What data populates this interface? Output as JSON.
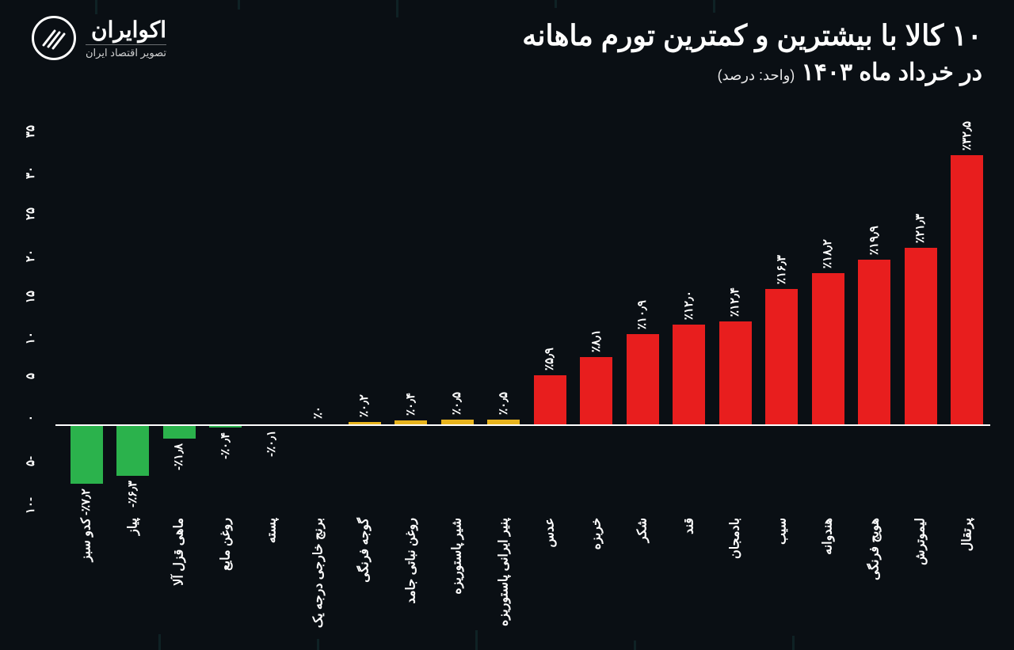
{
  "brand": {
    "name": "اکوایران",
    "tagline": "تصویر اقتصاد ایران"
  },
  "title": {
    "line1": "۱۰ کالا با بیشترین و کمترین تورم ماهانه",
    "line2": "در خرداد ماه ۱۴۰۳",
    "unit": "(واحد: درصد)"
  },
  "chart": {
    "type": "bar",
    "ymin": -10,
    "ymax": 35,
    "yticks": [
      -10,
      -5,
      0,
      5,
      10,
      15,
      20,
      25,
      30,
      35
    ],
    "ytick_labels": [
      "-۱۰",
      "-۵",
      "۰",
      "۵",
      "۱۰",
      "۱۵",
      "۲۰",
      "۲۵",
      "۳۰",
      "۳۵"
    ],
    "colors": {
      "positive_high": "#e81e1e",
      "positive_low": "#e8b41e",
      "negative": "#2bb24c",
      "axis": "#ffffff",
      "background": "#0a0f14"
    },
    "items": [
      {
        "category": "پرتقال",
        "value": 32.5,
        "label": "٪۳۲٫۵",
        "group": "high"
      },
      {
        "category": "لیموترش",
        "value": 21.3,
        "label": "٪۲۱٫۳",
        "group": "high"
      },
      {
        "category": "هویج فرنگی",
        "value": 19.9,
        "label": "٪۱۹٫۹",
        "group": "high"
      },
      {
        "category": "هندوانه",
        "value": 18.2,
        "label": "٪۱۸٫۲",
        "group": "high"
      },
      {
        "category": "سیب",
        "value": 16.3,
        "label": "٪۱۶٫۳",
        "group": "high"
      },
      {
        "category": "بادمجان",
        "value": 12.4,
        "label": "٪۱۲٫۴",
        "group": "high"
      },
      {
        "category": "قند",
        "value": 12.0,
        "label": "٪۱۲٫۰",
        "group": "high"
      },
      {
        "category": "شکر",
        "value": 10.9,
        "label": "٪۱۰٫۹",
        "group": "high"
      },
      {
        "category": "خربزه",
        "value": 8.1,
        "label": "٪۸٫۱",
        "group": "high"
      },
      {
        "category": "عدس",
        "value": 5.9,
        "label": "٪۵٫۹",
        "group": "high"
      },
      {
        "category": "پنیر ایرانی پاستوریزه",
        "value": 0.5,
        "label": "٪۰٫۵",
        "group": "low"
      },
      {
        "category": "شیر پاستوریزه",
        "value": 0.5,
        "label": "٪۰٫۵",
        "group": "low"
      },
      {
        "category": "روغن نباتی جامد",
        "value": 0.4,
        "label": "٪۰٫۴",
        "group": "low"
      },
      {
        "category": "گوجه فرنگی",
        "value": 0.2,
        "label": "٪۰٫۲",
        "group": "low"
      },
      {
        "category": "برنج خارجی درجه یک",
        "value": 0.0,
        "label": "٪۰",
        "group": "low"
      },
      {
        "category": "پسته",
        "value": -0.1,
        "label": "٪۰٫۱-",
        "group": "neg"
      },
      {
        "category": "روغن مایع",
        "value": -0.4,
        "label": "٪۰٫۴-",
        "group": "neg"
      },
      {
        "category": "ماهی قزل آلا",
        "value": -1.8,
        "label": "٪۱٫۸-",
        "group": "neg"
      },
      {
        "category": "پیاز",
        "value": -6.3,
        "label": "٪۶٫۳-",
        "group": "neg"
      },
      {
        "category": "کدو سبز",
        "value": -7.2,
        "label": "٪۷٫۲-",
        "group": "neg"
      }
    ]
  }
}
